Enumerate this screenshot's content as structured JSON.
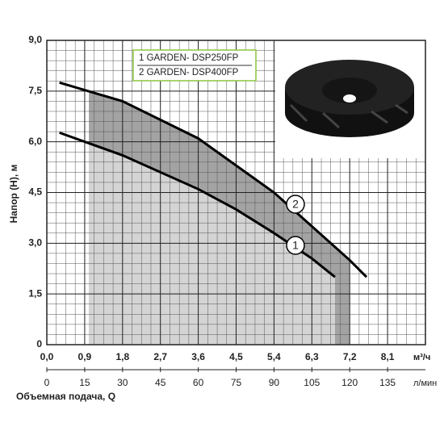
{
  "chart_data": {
    "type": "line",
    "xlabel": "Объемная подача, Q",
    "ylabel": "Напор (H), м",
    "xunit": "м³/ч",
    "x2unit": "л/мин",
    "xlim": [
      0,
      9
    ],
    "ylim": [
      0,
      9
    ],
    "x2lim": [
      0,
      150
    ],
    "xticks": [
      {
        "value": 0,
        "label": "0,0"
      },
      {
        "value": 0.9,
        "label": "0,9"
      },
      {
        "value": 1.8,
        "label": "1,8"
      },
      {
        "value": 2.7,
        "label": "2,7"
      },
      {
        "value": 3.6,
        "label": "3,6"
      },
      {
        "value": 4.5,
        "label": "4,5"
      },
      {
        "value": 5.4,
        "label": "5,4"
      },
      {
        "value": 6.3,
        "label": "6,3"
      },
      {
        "value": 7.2,
        "label": "7,2"
      },
      {
        "value": 8.1,
        "label": "8,1"
      }
    ],
    "yticks": [
      {
        "value": 0,
        "label": "0"
      },
      {
        "value": 1.5,
        "label": "1,5"
      },
      {
        "value": 3,
        "label": "3,0"
      },
      {
        "value": 4.5,
        "label": "4,5"
      },
      {
        "value": 6,
        "label": "6,0"
      },
      {
        "value": 7.5,
        "label": "7,5"
      },
      {
        "value": 9,
        "label": "9,0"
      }
    ],
    "x2ticks": [
      0,
      15,
      30,
      45,
      60,
      75,
      90,
      105,
      120,
      135
    ],
    "grid": true,
    "minor_grid_step": {
      "x": 0.225,
      "y": 0.3
    },
    "range": [
      1.0,
      7.2
    ],
    "series": [
      {
        "name": "1 GARDEN- DSP250FP",
        "marker": "1",
        "color": "#000000",
        "fill": "#d4d4d4",
        "x": [
          0.3,
          1.8,
          3.6,
          4.5,
          5.4,
          6.3,
          6.85
        ],
        "values": [
          6.27,
          5.6,
          4.6,
          4.0,
          3.3,
          2.55,
          2.0
        ]
      },
      {
        "name": "2 GARDEN- DSP400FP",
        "marker": "2",
        "color": "#000000",
        "fill": "#a3a3a3",
        "x": [
          0.3,
          1.8,
          3.6,
          5.4,
          6.3,
          7.2,
          7.6
        ],
        "values": [
          7.75,
          7.2,
          6.1,
          4.5,
          3.5,
          2.5,
          2.0
        ]
      }
    ]
  }
}
